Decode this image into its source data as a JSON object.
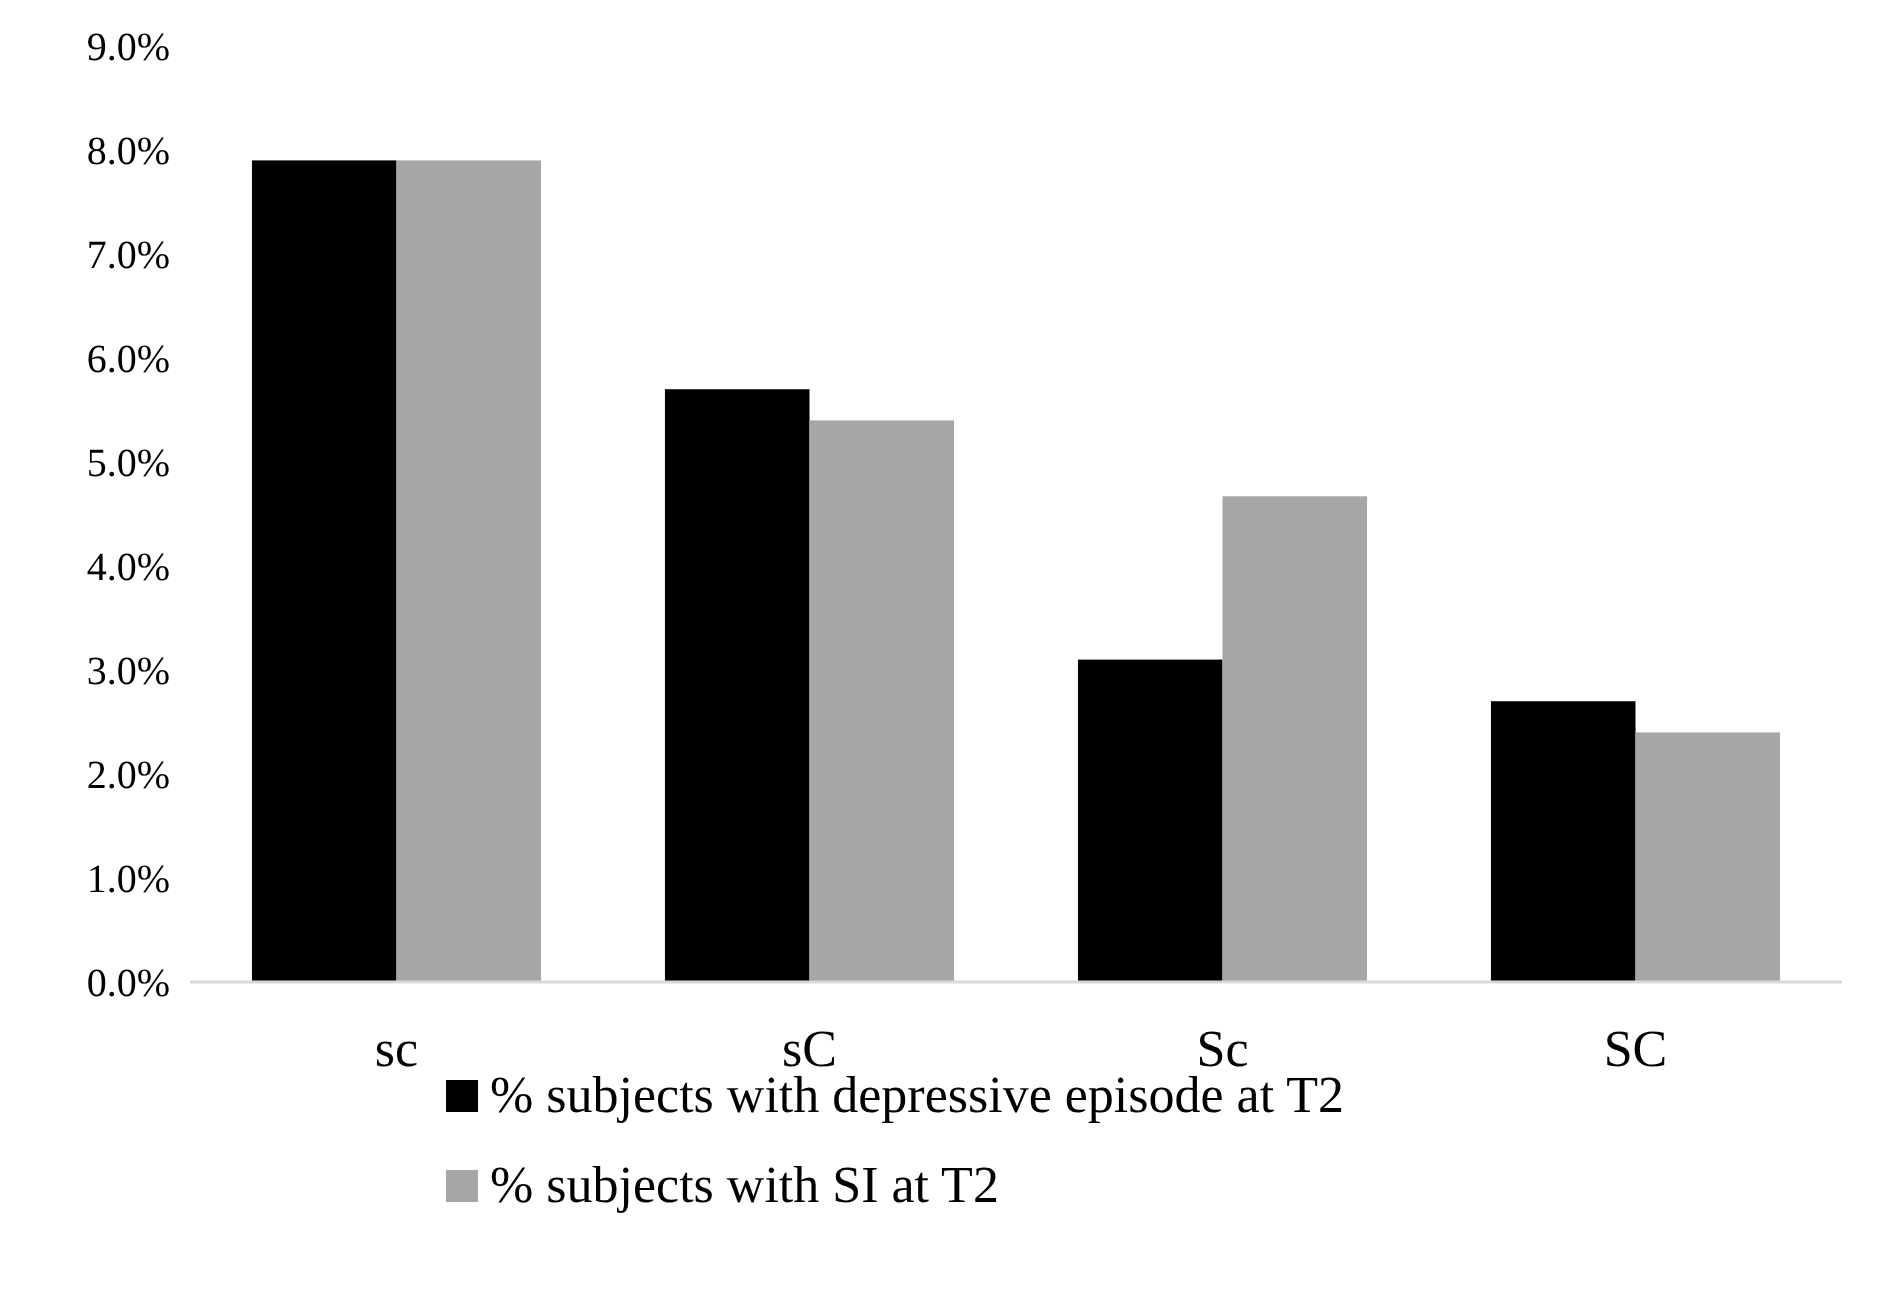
{
  "chart_data": {
    "type": "bar",
    "categories": [
      "sc",
      "sC",
      "Sc",
      "SC"
    ],
    "series": [
      {
        "name": "% subjects with depressive episode at T2",
        "color": "#000000",
        "values": [
          7.9,
          5.7,
          3.1,
          2.7
        ]
      },
      {
        "name": "% subjects with SI at T2",
        "color": "#a6a6a6",
        "values": [
          7.9,
          5.4,
          4.67,
          2.4
        ]
      }
    ],
    "ylim": [
      0,
      9
    ],
    "yticks": [
      {
        "value": 0,
        "label": "0.0%"
      },
      {
        "value": 1,
        "label": "1.0%"
      },
      {
        "value": 2,
        "label": "2.0%"
      },
      {
        "value": 3,
        "label": "3.0%"
      },
      {
        "value": 4,
        "label": "4.0%"
      },
      {
        "value": 5,
        "label": "5.0%"
      },
      {
        "value": 6,
        "label": "6.0%"
      },
      {
        "value": 7,
        "label": "7.0%"
      },
      {
        "value": 8,
        "label": "8.0%"
      },
      {
        "value": 9,
        "label": "9.0%"
      }
    ],
    "grid": false,
    "legend": "bottom"
  }
}
